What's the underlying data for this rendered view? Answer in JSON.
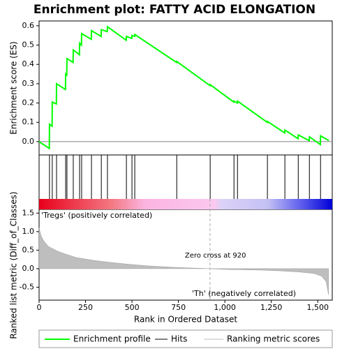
{
  "chart_data": [
    {
      "type": "line",
      "title": "Enrichment plot: FATTY ACID ELONGATION",
      "ylabel": "Enrichment score (ES)",
      "xlim": [
        0,
        1578
      ],
      "ylim": [
        -0.069,
        0.625
      ],
      "yticks": [
        {
          "value": 0,
          "label": "0.0"
        },
        0.1,
        0.2,
        0.3,
        0.4,
        0.5,
        0.6
      ],
      "zero_line": true,
      "x": [
        0,
        55,
        56,
        70,
        71,
        93,
        94,
        142,
        143,
        149,
        150,
        183,
        184,
        217,
        218,
        228,
        229,
        281,
        282,
        334,
        335,
        367,
        368,
        469,
        470,
        499,
        500,
        514,
        515,
        740,
        741,
        920,
        921,
        1048,
        1049,
        1067,
        1068,
        1228,
        1229,
        1322,
        1323,
        1394,
        1395,
        1454,
        1455,
        1514,
        1515,
        1560
      ],
      "series": [
        {
          "name": "Enrichment profile",
          "color": "#00ff00",
          "values": [
            0,
            -0.035,
            0.09,
            0.08,
            0.205,
            0.195,
            0.3,
            0.27,
            0.35,
            0.345,
            0.43,
            0.41,
            0.475,
            0.45,
            0.51,
            0.5,
            0.56,
            0.53,
            0.575,
            0.545,
            0.58,
            0.57,
            0.595,
            0.525,
            0.545,
            0.535,
            0.55,
            0.545,
            0.555,
            0.41,
            0.415,
            0.29,
            0.295,
            0.205,
            0.21,
            0.2,
            0.21,
            0.1,
            0.105,
            0.045,
            0.06,
            0.015,
            0.035,
            0.005,
            0.025,
            -0.015,
            0.03,
            0.005
          ]
        }
      ]
    },
    {
      "type": "hits",
      "name": "Hits",
      "color": "#000000",
      "xlim": [
        0,
        1578
      ],
      "hits": [
        56,
        71,
        94,
        143,
        150,
        184,
        218,
        229,
        282,
        335,
        368,
        470,
        500,
        515,
        741,
        921,
        1049,
        1068,
        1229,
        1323,
        1395,
        1455,
        1515
      ]
    },
    {
      "type": "area",
      "ylabel": "Ranked list metric (Diff_of_Classes)",
      "xlabel": "Rank in Ordered Dataset",
      "xlim": [
        0,
        1578
      ],
      "ylim": [
        -0.85,
        1.6
      ],
      "yticks": [
        -0.5,
        {
          "value": 0,
          "label": "0.0"
        },
        0.5,
        {
          "value": 1,
          "label": "1.0"
        },
        1.5
      ],
      "xticks": [
        0,
        250,
        500,
        750,
        {
          "value": 1000,
          "label": "1,000"
        },
        {
          "value": 1250,
          "label": "1,250"
        },
        {
          "value": 1500,
          "label": "1,500"
        }
      ],
      "zero_cross": 920,
      "annotations": [
        "'Tregs' (positively correlated)",
        "Zero cross at 920",
        "'Th' (negatively correlated)"
      ],
      "x": [
        0,
        10,
        25,
        50,
        100,
        150,
        200,
        300,
        400,
        500,
        600,
        750,
        920,
        1000,
        1200,
        1300,
        1400,
        1480,
        1520,
        1545,
        1558
      ],
      "series": [
        {
          "name": "Ranking metric scores",
          "color": "#bebebe",
          "values": [
            1.1,
            0.9,
            0.75,
            0.6,
            0.47,
            0.38,
            0.3,
            0.22,
            0.16,
            0.11,
            0.07,
            0.03,
            0,
            -0.02,
            -0.04,
            -0.06,
            -0.09,
            -0.13,
            -0.2,
            -0.35,
            -0.7
          ]
        }
      ]
    }
  ]
}
